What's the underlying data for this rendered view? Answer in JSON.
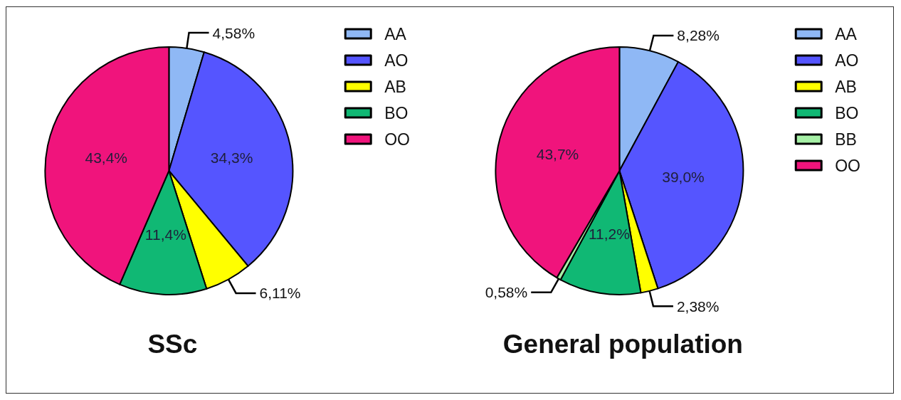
{
  "chart_data": [
    {
      "type": "pie",
      "title": "SSc",
      "categories": [
        "AA",
        "AO",
        "AB",
        "BO",
        "OO"
      ],
      "values": [
        4.58,
        34.3,
        6.11,
        11.4,
        43.4
      ],
      "colors": [
        "#8fb8f5",
        "#5555ff",
        "#ffff00",
        "#10b874",
        "#f0147c"
      ],
      "value_labels": [
        "4,58%",
        "34,3%",
        "6,11%",
        "11,4%",
        "43,4%"
      ],
      "legend": "top right"
    },
    {
      "type": "pie",
      "title": "General population",
      "categories": [
        "AA",
        "AO",
        "AB",
        "BO",
        "BB",
        "OO"
      ],
      "values": [
        8.28,
        39.0,
        2.38,
        11.2,
        0.58,
        43.7
      ],
      "colors": [
        "#8fb8f5",
        "#5555ff",
        "#ffff00",
        "#10b874",
        "#a6f0a6",
        "#f0147c"
      ],
      "value_labels": [
        "8,28%",
        "39,0%",
        "2,38%",
        "11,2%",
        "0,58%",
        "43,7%"
      ],
      "legend": "top right"
    }
  ]
}
